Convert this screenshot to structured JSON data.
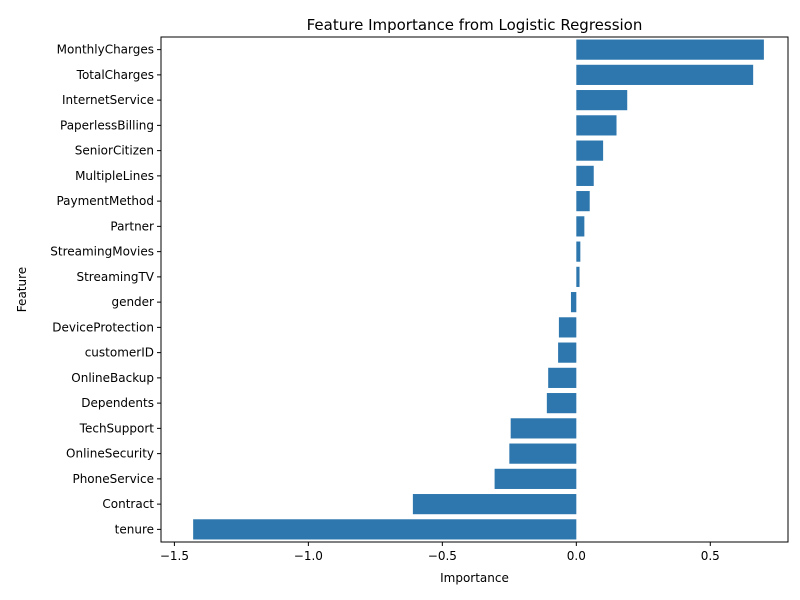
{
  "chart_data": {
    "type": "bar",
    "orientation": "horizontal",
    "title": "Feature Importance from Logistic Regression",
    "xlabel": "Importance",
    "ylabel": "Feature",
    "xlim": [
      -1.55,
      0.79
    ],
    "xticks": [
      -1.5,
      -1.0,
      -0.5,
      0.0,
      0.5
    ],
    "xtick_labels": [
      "−1.5",
      "−1.0",
      "−0.5",
      "0.0",
      "0.5"
    ],
    "grid": false,
    "bar_color": "#2e77ae",
    "categories": [
      "MonthlyCharges",
      "TotalCharges",
      "InternetService",
      "PaperlessBilling",
      "SeniorCitizen",
      "MultipleLines",
      "PaymentMethod",
      "Partner",
      "StreamingMovies",
      "StreamingTV",
      "gender",
      "DeviceProtection",
      "customerID",
      "OnlineBackup",
      "Dependents",
      "TechSupport",
      "OnlineSecurity",
      "PhoneService",
      "Contract",
      "tenure"
    ],
    "values": [
      0.7,
      0.66,
      0.19,
      0.15,
      0.1,
      0.065,
      0.05,
      0.03,
      0.015,
      0.012,
      -0.02,
      -0.065,
      -0.068,
      -0.105,
      -0.11,
      -0.245,
      -0.25,
      -0.305,
      -0.61,
      -1.43
    ]
  }
}
